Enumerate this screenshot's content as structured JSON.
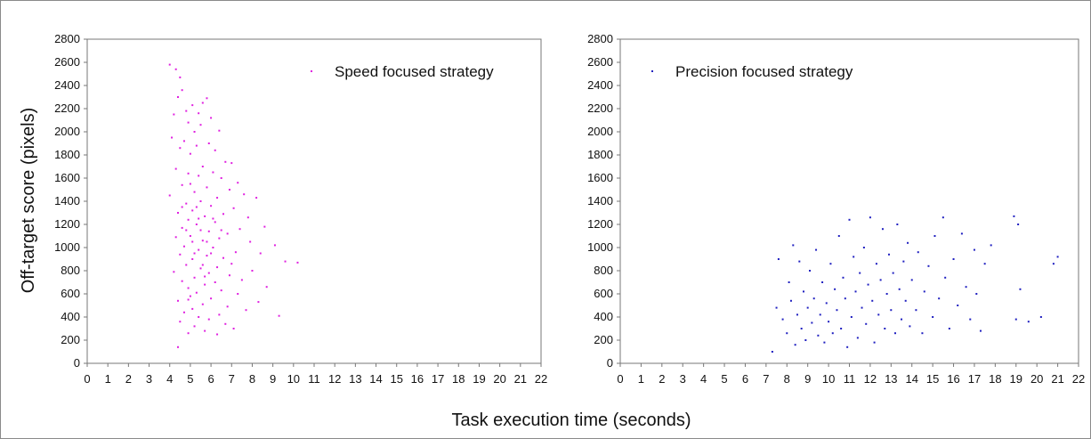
{
  "chart_data": [
    {
      "type": "scatter",
      "panel": "left",
      "xlim": [
        0,
        22
      ],
      "ylim": [
        0,
        2800
      ],
      "x_ticks": [
        "0",
        "1",
        "2",
        "3",
        "4",
        "5",
        "6",
        "7",
        "8",
        "9",
        "10",
        "11",
        "12",
        "13",
        "14",
        "15",
        "16",
        "17",
        "18",
        "19",
        "20",
        "21",
        "22"
      ],
      "y_ticks": [
        "0",
        "200",
        "400",
        "600",
        "800",
        "1000",
        "1200",
        "1400",
        "1600",
        "1800",
        "2000",
        "2200",
        "2400",
        "2600",
        "2800"
      ],
      "grid": false,
      "legend_position": "top-right",
      "series": [
        {
          "name": "Speed focused strategy",
          "color": "#e020e0",
          "description_x_range": [
            3.7,
            10.3
          ],
          "points": [
            [
              4.0,
              2580
            ],
            [
              4.3,
              2540
            ],
            [
              4.5,
              2470
            ],
            [
              4.6,
              2360
            ],
            [
              4.4,
              2300
            ],
            [
              5.8,
              2290
            ],
            [
              5.6,
              2250
            ],
            [
              5.1,
              2230
            ],
            [
              4.8,
              2180
            ],
            [
              5.4,
              2160
            ],
            [
              6.0,
              2120
            ],
            [
              4.2,
              2150
            ],
            [
              4.9,
              2080
            ],
            [
              5.5,
              2060
            ],
            [
              6.4,
              2010
            ],
            [
              5.2,
              2000
            ],
            [
              4.1,
              1950
            ],
            [
              4.7,
              1920
            ],
            [
              5.9,
              1900
            ],
            [
              5.3,
              1880
            ],
            [
              4.5,
              1860
            ],
            [
              6.2,
              1840
            ],
            [
              5.0,
              1810
            ],
            [
              6.7,
              1740
            ],
            [
              7.0,
              1730
            ],
            [
              5.6,
              1700
            ],
            [
              4.3,
              1680
            ],
            [
              6.1,
              1650
            ],
            [
              4.9,
              1640
            ],
            [
              5.4,
              1620
            ],
            [
              6.5,
              1600
            ],
            [
              7.3,
              1560
            ],
            [
              4.6,
              1540
            ],
            [
              5.8,
              1520
            ],
            [
              6.9,
              1500
            ],
            [
              5.2,
              1480
            ],
            [
              7.6,
              1460
            ],
            [
              4.0,
              1450
            ],
            [
              6.3,
              1430
            ],
            [
              8.2,
              1430
            ],
            [
              5.5,
              1400
            ],
            [
              4.8,
              1380
            ],
            [
              6.0,
              1360
            ],
            [
              7.1,
              1340
            ],
            [
              5.1,
              1320
            ],
            [
              4.4,
              1300
            ],
            [
              6.6,
              1290
            ],
            [
              5.7,
              1270
            ],
            [
              7.8,
              1260
            ],
            [
              4.9,
              1240
            ],
            [
              6.2,
              1220
            ],
            [
              5.3,
              1200
            ],
            [
              8.6,
              1180
            ],
            [
              4.6,
              1170
            ],
            [
              7.4,
              1160
            ],
            [
              5.9,
              1140
            ],
            [
              6.8,
              1120
            ],
            [
              5.0,
              1100
            ],
            [
              4.3,
              1090
            ],
            [
              6.4,
              1080
            ],
            [
              5.6,
              1060
            ],
            [
              7.9,
              1050
            ],
            [
              9.1,
              1020
            ],
            [
              4.7,
              1010
            ],
            [
              6.1,
              1000
            ],
            [
              5.4,
              980
            ],
            [
              7.2,
              960
            ],
            [
              8.4,
              950
            ],
            [
              4.5,
              940
            ],
            [
              5.8,
              930
            ],
            [
              6.6,
              910
            ],
            [
              5.1,
              900
            ],
            [
              9.6,
              880
            ],
            [
              10.2,
              870
            ],
            [
              7.0,
              860
            ],
            [
              4.8,
              850
            ],
            [
              6.3,
              830
            ],
            [
              5.5,
              820
            ],
            [
              8.0,
              800
            ],
            [
              4.2,
              790
            ],
            [
              5.9,
              780
            ],
            [
              6.9,
              760
            ],
            [
              5.2,
              740
            ],
            [
              7.5,
              720
            ],
            [
              4.6,
              710
            ],
            [
              6.2,
              700
            ],
            [
              5.7,
              680
            ],
            [
              8.7,
              660
            ],
            [
              4.9,
              650
            ],
            [
              6.5,
              630
            ],
            [
              5.3,
              610
            ],
            [
              7.3,
              600
            ],
            [
              5.0,
              580
            ],
            [
              6.0,
              560
            ],
            [
              4.4,
              540
            ],
            [
              8.3,
              530
            ],
            [
              5.6,
              510
            ],
            [
              6.8,
              490
            ],
            [
              5.1,
              470
            ],
            [
              7.7,
              460
            ],
            [
              4.7,
              440
            ],
            [
              6.4,
              420
            ],
            [
              9.3,
              410
            ],
            [
              5.4,
              400
            ],
            [
              5.9,
              380
            ],
            [
              4.5,
              360
            ],
            [
              6.7,
              340
            ],
            [
              5.2,
              320
            ],
            [
              7.1,
              300
            ],
            [
              5.7,
              280
            ],
            [
              4.9,
              260
            ],
            [
              6.3,
              250
            ],
            [
              4.4,
              140
            ],
            [
              5.0,
              1550
            ],
            [
              5.3,
              1350
            ],
            [
              5.5,
              1150
            ],
            [
              5.2,
              950
            ],
            [
              5.6,
              850
            ],
            [
              5.1,
              1050
            ],
            [
              5.4,
              1250
            ],
            [
              4.8,
              1150
            ],
            [
              5.8,
              1050
            ],
            [
              6.1,
              1250
            ],
            [
              4.6,
              1350
            ],
            [
              6.0,
              950
            ],
            [
              5.7,
              750
            ],
            [
              4.9,
              550
            ],
            [
              6.5,
              1150
            ]
          ]
        }
      ]
    },
    {
      "type": "scatter",
      "panel": "right",
      "xlim": [
        0,
        22
      ],
      "ylim": [
        0,
        2800
      ],
      "x_ticks": [
        "0",
        "1",
        "2",
        "3",
        "4",
        "5",
        "6",
        "7",
        "8",
        "9",
        "10",
        "11",
        "12",
        "13",
        "14",
        "15",
        "16",
        "17",
        "18",
        "19",
        "20",
        "21",
        "22"
      ],
      "y_ticks": [
        "0",
        "200",
        "400",
        "600",
        "800",
        "1000",
        "1200",
        "1400",
        "1600",
        "1800",
        "2000",
        "2200",
        "2400",
        "2600",
        "2800"
      ],
      "grid": false,
      "legend_position": "top-right",
      "series": [
        {
          "name": "Precision focused strategy",
          "color": "#2020c0",
          "points": [
            [
              7.3,
              100
            ],
            [
              7.5,
              480
            ],
            [
              7.6,
              900
            ],
            [
              7.8,
              380
            ],
            [
              8.0,
              260
            ],
            [
              8.1,
              700
            ],
            [
              8.2,
              540
            ],
            [
              8.3,
              1020
            ],
            [
              8.4,
              160
            ],
            [
              8.5,
              420
            ],
            [
              8.6,
              880
            ],
            [
              8.7,
              300
            ],
            [
              8.8,
              620
            ],
            [
              8.9,
              200
            ],
            [
              9.0,
              480
            ],
            [
              9.1,
              800
            ],
            [
              9.2,
              350
            ],
            [
              9.3,
              560
            ],
            [
              9.4,
              980
            ],
            [
              9.5,
              240
            ],
            [
              9.6,
              420
            ],
            [
              9.7,
              700
            ],
            [
              9.8,
              180
            ],
            [
              9.9,
              520
            ],
            [
              10.0,
              360
            ],
            [
              10.1,
              860
            ],
            [
              10.2,
              260
            ],
            [
              10.3,
              640
            ],
            [
              10.4,
              460
            ],
            [
              10.5,
              1100
            ],
            [
              10.6,
              300
            ],
            [
              10.7,
              740
            ],
            [
              10.8,
              560
            ],
            [
              10.9,
              140
            ],
            [
              11.0,
              1240
            ],
            [
              11.1,
              400
            ],
            [
              11.2,
              920
            ],
            [
              11.3,
              620
            ],
            [
              11.4,
              220
            ],
            [
              11.5,
              780
            ],
            [
              11.6,
              480
            ],
            [
              11.7,
              1000
            ],
            [
              11.8,
              340
            ],
            [
              11.9,
              680
            ],
            [
              12.0,
              1260
            ],
            [
              12.1,
              540
            ],
            [
              12.2,
              180
            ],
            [
              12.3,
              860
            ],
            [
              12.4,
              420
            ],
            [
              12.5,
              720
            ],
            [
              12.6,
              1160
            ],
            [
              12.7,
              300
            ],
            [
              12.8,
              600
            ],
            [
              12.9,
              940
            ],
            [
              13.0,
              460
            ],
            [
              13.1,
              780
            ],
            [
              13.2,
              260
            ],
            [
              13.3,
              1200
            ],
            [
              13.4,
              640
            ],
            [
              13.5,
              380
            ],
            [
              13.6,
              880
            ],
            [
              13.7,
              540
            ],
            [
              13.8,
              1040
            ],
            [
              13.9,
              320
            ],
            [
              14.0,
              720
            ],
            [
              14.2,
              460
            ],
            [
              14.3,
              960
            ],
            [
              14.5,
              260
            ],
            [
              14.6,
              620
            ],
            [
              14.8,
              840
            ],
            [
              15.0,
              400
            ],
            [
              15.1,
              1100
            ],
            [
              15.3,
              560
            ],
            [
              15.5,
              1260
            ],
            [
              15.6,
              740
            ],
            [
              15.8,
              300
            ],
            [
              16.0,
              900
            ],
            [
              16.2,
              500
            ],
            [
              16.4,
              1120
            ],
            [
              16.6,
              660
            ],
            [
              16.8,
              380
            ],
            [
              17.0,
              980
            ],
            [
              17.1,
              600
            ],
            [
              17.3,
              280
            ],
            [
              17.5,
              860
            ],
            [
              17.8,
              1020
            ],
            [
              18.9,
              1270
            ],
            [
              19.1,
              1200
            ],
            [
              19.2,
              640
            ],
            [
              19.0,
              380
            ],
            [
              19.6,
              360
            ],
            [
              20.2,
              400
            ],
            [
              20.8,
              860
            ],
            [
              21.0,
              920
            ]
          ]
        }
      ]
    }
  ],
  "axis_labels": {
    "ylabel": "Off-target score (pixels)",
    "xlabel": "Task execution time (seconds)"
  }
}
